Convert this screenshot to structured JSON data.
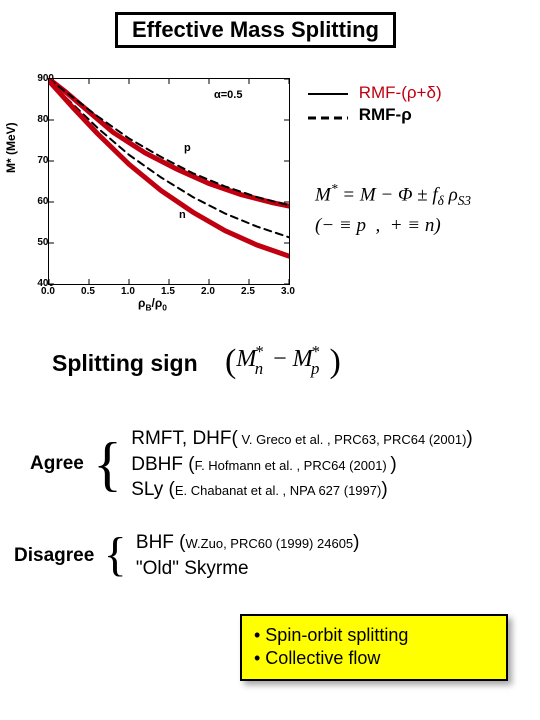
{
  "title": "Effective Mass Splitting",
  "chart": {
    "type": "line",
    "ylabel": "M* (MeV)",
    "xlabel": "ρB/ρ0",
    "alpha_label": "α=0.5",
    "series_labels": {
      "p": "p",
      "n": "n"
    },
    "xlim": [
      0.0,
      3.0
    ],
    "ylim": [
      400,
      900
    ],
    "xticks": [
      "0.0",
      "0.5",
      "1.0",
      "1.5",
      "2.0",
      "2.5",
      "3.0"
    ],
    "yticks": [
      "400",
      "500",
      "600",
      "700",
      "800",
      "900"
    ],
    "background_color": "#ffffff",
    "axis_color": "#000000",
    "series": [
      {
        "name": "p_solid",
        "label": "p",
        "color": "#c00010",
        "style": "solid",
        "width": 5,
        "points": [
          [
            0.0,
            900
          ],
          [
            0.2,
            870
          ],
          [
            0.5,
            820
          ],
          [
            0.8,
            770
          ],
          [
            1.2,
            720
          ],
          [
            1.6,
            680
          ],
          [
            2.0,
            645
          ],
          [
            2.4,
            618
          ],
          [
            2.8,
            598
          ],
          [
            3.0,
            590
          ]
        ]
      },
      {
        "name": "p_dashed",
        "label": "p",
        "color": "#000000",
        "style": "dashed",
        "width": 2,
        "points": [
          [
            0.0,
            900
          ],
          [
            0.3,
            855
          ],
          [
            0.6,
            810
          ],
          [
            1.0,
            755
          ],
          [
            1.4,
            710
          ],
          [
            1.8,
            670
          ],
          [
            2.2,
            638
          ],
          [
            2.6,
            612
          ],
          [
            3.0,
            592
          ]
        ]
      },
      {
        "name": "n_dashed",
        "label": "n",
        "color": "#000000",
        "style": "dashed",
        "width": 2,
        "points": [
          [
            0.0,
            895
          ],
          [
            0.3,
            838
          ],
          [
            0.6,
            782
          ],
          [
            1.0,
            715
          ],
          [
            1.4,
            660
          ],
          [
            1.8,
            612
          ],
          [
            2.2,
            572
          ],
          [
            2.6,
            540
          ],
          [
            3.0,
            514
          ]
        ]
      },
      {
        "name": "n_solid",
        "label": "n",
        "color": "#c00010",
        "style": "solid",
        "width": 5,
        "points": [
          [
            0.0,
            895
          ],
          [
            0.3,
            830
          ],
          [
            0.6,
            768
          ],
          [
            1.0,
            692
          ],
          [
            1.4,
            628
          ],
          [
            1.8,
            575
          ],
          [
            2.2,
            530
          ],
          [
            2.6,
            495
          ],
          [
            3.0,
            468
          ]
        ]
      }
    ]
  },
  "legend": {
    "solid": "RMF-(ρ+δ)",
    "dashed": "RMF-ρ",
    "solid_color": "#c00010",
    "dashed_color": "#000000"
  },
  "equations": {
    "line1": "M* = M − Φ ± f_δ ρ_{S3}",
    "line2": "(− ≡ p , + ≡ n)"
  },
  "splitting_heading": "Splitting sign",
  "mn_mp_expr": "(M*_n − M*_p)",
  "agree": {
    "label": "Agree",
    "items": [
      {
        "main": "RMFT, DHF(",
        "cite": " V. Greco et al. , PRC63, PRC64 (2001)",
        "tail": ")"
      },
      {
        "main": "DBHF (",
        "cite": "F. Hofmann et al. , PRC64 (2001) ",
        "tail": ")"
      },
      {
        "main": "SLy (",
        "cite": "E. Chabanat et al. , NPA 627 (1997)",
        "tail": ")"
      }
    ]
  },
  "disagree": {
    "label": "Disagree",
    "items": [
      {
        "main": "BHF (",
        "cite": "W.Zuo, PRC60 (1999) 24605",
        "tail": ")"
      },
      {
        "main": "\"Old\" Skyrme",
        "cite": "",
        "tail": ""
      }
    ]
  },
  "yellow_box": {
    "line1": "• Spin-orbit splitting",
    "line2": "• Collective flow",
    "bg": "#ffff00"
  }
}
